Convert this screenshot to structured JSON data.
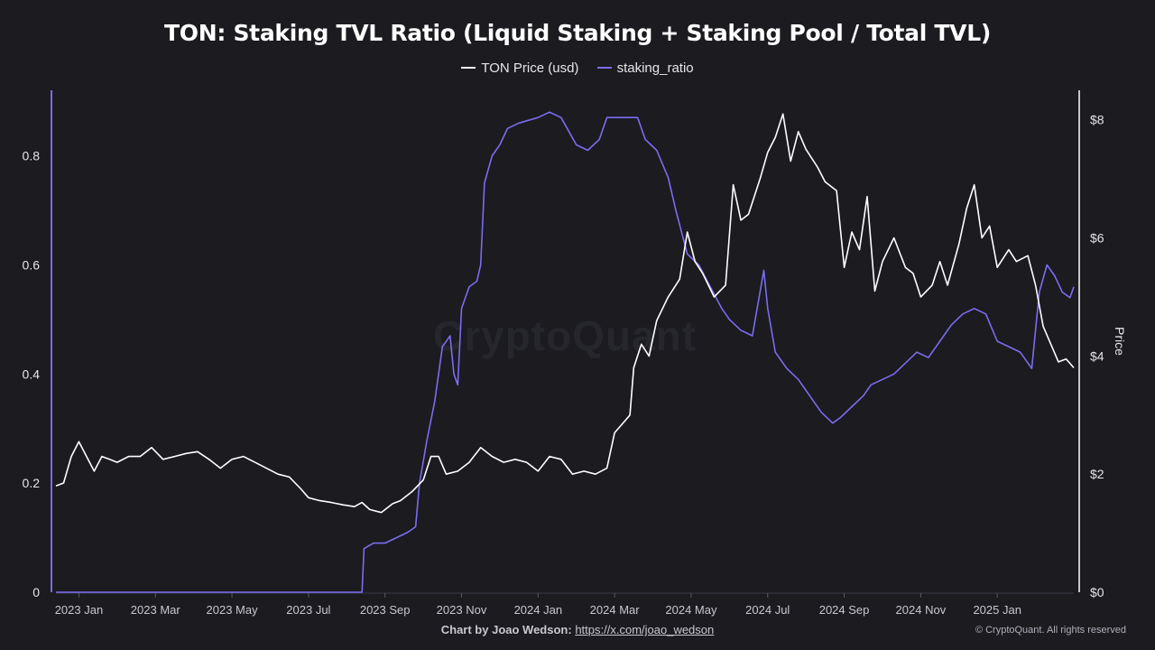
{
  "page": {
    "watermark": "CryptoQuant"
  },
  "chart_data": {
    "type": "line",
    "title": "TON: Staking TVL Ratio (Liquid Staking + Staking Pool / Total TVL)",
    "x_ticks": [
      "2023 Jan",
      "2023 Mar",
      "2023 May",
      "2023 Jul",
      "2023 Sep",
      "2023 Nov",
      "2024 Jan",
      "2024 Mar",
      "2024 May",
      "2024 Jul",
      "2024 Sep",
      "2024 Nov",
      "2025 Jan"
    ],
    "x_tick_months": [
      1,
      3,
      5,
      7,
      9,
      11,
      13,
      15,
      17,
      19,
      21,
      23,
      25
    ],
    "x_range_months": [
      0.4,
      27.0
    ],
    "y_left": {
      "label": "",
      "ticks": [
        0,
        0.2,
        0.4,
        0.6,
        0.8
      ],
      "tick_labels": [
        "0",
        "0.2",
        "0.4",
        "0.6",
        "0.8"
      ],
      "range": [
        0,
        0.92
      ]
    },
    "y_right": {
      "label": "Price",
      "ticks": [
        0,
        2,
        4,
        6,
        8
      ],
      "tick_labels": [
        "$0",
        "$2",
        "$4",
        "$6",
        "$8"
      ],
      "range": [
        0,
        8.5
      ]
    },
    "grid": false,
    "legend_position": "top-center",
    "series": [
      {
        "name": "TON Price (usd)",
        "axis": "right",
        "color": "#ffffff",
        "points": [
          [
            0.4,
            1.8
          ],
          [
            0.6,
            1.85
          ],
          [
            0.8,
            2.3
          ],
          [
            1.0,
            2.55
          ],
          [
            1.2,
            2.3
          ],
          [
            1.4,
            2.05
          ],
          [
            1.6,
            2.3
          ],
          [
            1.8,
            2.25
          ],
          [
            2.0,
            2.2
          ],
          [
            2.3,
            2.3
          ],
          [
            2.6,
            2.3
          ],
          [
            2.9,
            2.45
          ],
          [
            3.2,
            2.25
          ],
          [
            3.5,
            2.3
          ],
          [
            3.8,
            2.35
          ],
          [
            4.1,
            2.38
          ],
          [
            4.4,
            2.25
          ],
          [
            4.7,
            2.1
          ],
          [
            5.0,
            2.25
          ],
          [
            5.3,
            2.3
          ],
          [
            5.6,
            2.2
          ],
          [
            5.9,
            2.1
          ],
          [
            6.2,
            2.0
          ],
          [
            6.5,
            1.95
          ],
          [
            6.8,
            1.75
          ],
          [
            7.0,
            1.6
          ],
          [
            7.3,
            1.55
          ],
          [
            7.6,
            1.52
          ],
          [
            7.9,
            1.48
          ],
          [
            8.2,
            1.45
          ],
          [
            8.4,
            1.52
          ],
          [
            8.6,
            1.4
          ],
          [
            8.9,
            1.35
          ],
          [
            9.2,
            1.5
          ],
          [
            9.4,
            1.55
          ],
          [
            9.7,
            1.7
          ],
          [
            10.0,
            1.9
          ],
          [
            10.2,
            2.3
          ],
          [
            10.4,
            2.3
          ],
          [
            10.6,
            2.0
          ],
          [
            10.9,
            2.05
          ],
          [
            11.2,
            2.2
          ],
          [
            11.5,
            2.45
          ],
          [
            11.8,
            2.3
          ],
          [
            12.1,
            2.2
          ],
          [
            12.4,
            2.25
          ],
          [
            12.7,
            2.2
          ],
          [
            13.0,
            2.05
          ],
          [
            13.3,
            2.3
          ],
          [
            13.6,
            2.25
          ],
          [
            13.9,
            2.0
          ],
          [
            14.2,
            2.05
          ],
          [
            14.5,
            2.0
          ],
          [
            14.8,
            2.1
          ],
          [
            15.0,
            2.7
          ],
          [
            15.2,
            2.85
          ],
          [
            15.4,
            3.0
          ],
          [
            15.5,
            3.8
          ],
          [
            15.7,
            4.2
          ],
          [
            15.9,
            4.0
          ],
          [
            16.1,
            4.6
          ],
          [
            16.4,
            5.0
          ],
          [
            16.7,
            5.3
          ],
          [
            16.9,
            6.1
          ],
          [
            17.1,
            5.6
          ],
          [
            17.3,
            5.4
          ],
          [
            17.6,
            5.0
          ],
          [
            17.9,
            5.2
          ],
          [
            18.1,
            6.9
          ],
          [
            18.3,
            6.3
          ],
          [
            18.5,
            6.4
          ],
          [
            18.8,
            7.0
          ],
          [
            19.0,
            7.45
          ],
          [
            19.2,
            7.7
          ],
          [
            19.4,
            8.1
          ],
          [
            19.6,
            7.3
          ],
          [
            19.8,
            7.8
          ],
          [
            20.0,
            7.5
          ],
          [
            20.3,
            7.2
          ],
          [
            20.5,
            6.95
          ],
          [
            20.8,
            6.8
          ],
          [
            21.0,
            5.5
          ],
          [
            21.2,
            6.1
          ],
          [
            21.4,
            5.8
          ],
          [
            21.6,
            6.7
          ],
          [
            21.8,
            5.1
          ],
          [
            22.0,
            5.6
          ],
          [
            22.3,
            6.0
          ],
          [
            22.6,
            5.5
          ],
          [
            22.8,
            5.4
          ],
          [
            23.0,
            5.0
          ],
          [
            23.3,
            5.2
          ],
          [
            23.5,
            5.6
          ],
          [
            23.7,
            5.2
          ],
          [
            24.0,
            5.9
          ],
          [
            24.2,
            6.5
          ],
          [
            24.4,
            6.9
          ],
          [
            24.6,
            6.0
          ],
          [
            24.8,
            6.2
          ],
          [
            25.0,
            5.5
          ],
          [
            25.3,
            5.8
          ],
          [
            25.5,
            5.6
          ],
          [
            25.8,
            5.7
          ],
          [
            26.0,
            5.2
          ],
          [
            26.2,
            4.5
          ],
          [
            26.4,
            4.2
          ],
          [
            26.6,
            3.9
          ],
          [
            26.8,
            3.95
          ],
          [
            27.0,
            3.8
          ]
        ]
      },
      {
        "name": "staking_ratio",
        "axis": "left",
        "color": "#7b6cf0",
        "points": [
          [
            0.4,
            0.0
          ],
          [
            8.3,
            0.0
          ],
          [
            8.4,
            0.0
          ],
          [
            8.45,
            0.08
          ],
          [
            8.7,
            0.09
          ],
          [
            9.0,
            0.09
          ],
          [
            9.3,
            0.1
          ],
          [
            9.6,
            0.11
          ],
          [
            9.8,
            0.12
          ],
          [
            9.9,
            0.2
          ],
          [
            10.1,
            0.28
          ],
          [
            10.3,
            0.35
          ],
          [
            10.5,
            0.45
          ],
          [
            10.7,
            0.47
          ],
          [
            10.8,
            0.4
          ],
          [
            10.9,
            0.38
          ],
          [
            11.0,
            0.52
          ],
          [
            11.2,
            0.56
          ],
          [
            11.4,
            0.57
          ],
          [
            11.5,
            0.6
          ],
          [
            11.6,
            0.75
          ],
          [
            11.8,
            0.8
          ],
          [
            12.0,
            0.82
          ],
          [
            12.2,
            0.85
          ],
          [
            12.5,
            0.86
          ],
          [
            13.0,
            0.87
          ],
          [
            13.3,
            0.88
          ],
          [
            13.6,
            0.87
          ],
          [
            14.0,
            0.82
          ],
          [
            14.3,
            0.81
          ],
          [
            14.6,
            0.83
          ],
          [
            14.8,
            0.87
          ],
          [
            15.2,
            0.87
          ],
          [
            15.6,
            0.87
          ],
          [
            15.8,
            0.83
          ],
          [
            16.1,
            0.81
          ],
          [
            16.4,
            0.76
          ],
          [
            16.6,
            0.7
          ],
          [
            16.9,
            0.62
          ],
          [
            17.2,
            0.6
          ],
          [
            17.5,
            0.56
          ],
          [
            17.8,
            0.52
          ],
          [
            18.0,
            0.5
          ],
          [
            18.3,
            0.48
          ],
          [
            18.6,
            0.47
          ],
          [
            18.9,
            0.59
          ],
          [
            19.0,
            0.52
          ],
          [
            19.2,
            0.44
          ],
          [
            19.5,
            0.41
          ],
          [
            19.8,
            0.39
          ],
          [
            20.1,
            0.36
          ],
          [
            20.4,
            0.33
          ],
          [
            20.7,
            0.31
          ],
          [
            20.9,
            0.32
          ],
          [
            21.2,
            0.34
          ],
          [
            21.5,
            0.36
          ],
          [
            21.7,
            0.38
          ],
          [
            22.0,
            0.39
          ],
          [
            22.3,
            0.4
          ],
          [
            22.6,
            0.42
          ],
          [
            22.9,
            0.44
          ],
          [
            23.2,
            0.43
          ],
          [
            23.5,
            0.46
          ],
          [
            23.8,
            0.49
          ],
          [
            24.1,
            0.51
          ],
          [
            24.4,
            0.52
          ],
          [
            24.7,
            0.51
          ],
          [
            25.0,
            0.46
          ],
          [
            25.3,
            0.45
          ],
          [
            25.6,
            0.44
          ],
          [
            25.9,
            0.41
          ],
          [
            26.1,
            0.55
          ],
          [
            26.3,
            0.6
          ],
          [
            26.5,
            0.58
          ],
          [
            26.7,
            0.55
          ],
          [
            26.9,
            0.54
          ],
          [
            27.0,
            0.56
          ]
        ]
      }
    ]
  },
  "footer": {
    "credit_label": "Chart by Joao Wedson:",
    "credit_link": "https://x.com/joao_wedson",
    "copyright": "© CryptoQuant. All rights reserved"
  }
}
